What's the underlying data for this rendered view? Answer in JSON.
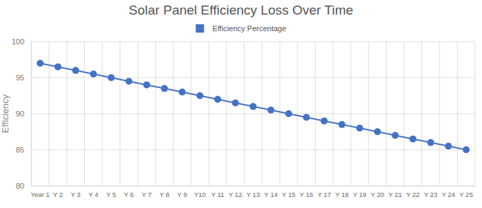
{
  "chart_data": {
    "type": "line",
    "title": "Solar Panel Efficiency Loss Over Time",
    "y_label": "Efficiency",
    "categories": [
      "Year 1",
      "Y 2",
      "Y 3",
      "Y 4",
      "Y 5",
      "Y 6",
      "Y 7",
      "Y 8",
      "Y 9",
      "Y10",
      "Y 11",
      "Y 12",
      "Y 13",
      "Y 14",
      "Y 15",
      "Y 16",
      "Y 17",
      "Y 18",
      "Y 19",
      "Y 20",
      "Y 21",
      "Y 22",
      "Y 23",
      "Y 24",
      "Y 25"
    ],
    "series": [
      {
        "name": "Efficiency Percentage",
        "color": "#4472c4",
        "marker": "circle",
        "values": [
          97,
          96.5,
          96,
          95.5,
          95,
          94.5,
          94,
          93.5,
          93,
          92.5,
          92,
          91.5,
          91,
          90.5,
          90,
          89.5,
          89,
          88.5,
          88,
          87.5,
          87,
          86.5,
          86,
          85.5,
          85
        ]
      }
    ],
    "ylim": [
      80,
      100
    ],
    "yticks": [
      80,
      85,
      90,
      95,
      100
    ],
    "grid": true,
    "legend": "top"
  }
}
